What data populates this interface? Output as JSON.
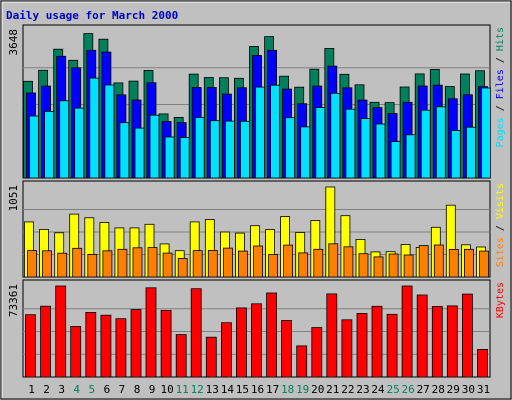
{
  "chart_data": {
    "type": "bar",
    "title": "Daily usage for March 2000",
    "categories": [
      "1",
      "2",
      "3",
      "4",
      "5",
      "6",
      "7",
      "8",
      "9",
      "10",
      "11",
      "12",
      "13",
      "14",
      "15",
      "16",
      "17",
      "18",
      "19",
      "20",
      "21",
      "22",
      "23",
      "24",
      "25",
      "26",
      "27",
      "28",
      "29",
      "30",
      "31"
    ],
    "weekend_days": [
      "4",
      "5",
      "11",
      "12",
      "18",
      "19",
      "25",
      "26"
    ],
    "panels": [
      {
        "id": "hits-files-pages",
        "ymax_label": "3648",
        "ymax": 3648,
        "legend": [
          {
            "name": "Pages",
            "color": "#00e0ff"
          },
          {
            "name": "Files",
            "color": "#0000ff"
          },
          {
            "name": "Hits",
            "color": "#00805c"
          }
        ],
        "series": [
          {
            "name": "Hits",
            "color": "#00805c",
            "values": [
              2400,
              2672,
              3196,
              2922,
              3583,
              3444,
              2361,
              2404,
              2670,
              1590,
              1505,
              2578,
              2495,
              2490,
              2475,
              3266,
              3510,
              2526,
              2253,
              2699,
              3216,
              2573,
              2312,
              1879,
              1871,
              2258,
              2583,
              2696,
              2270,
              2582,
              2664
            ]
          },
          {
            "name": "Files",
            "color": "#0000ff",
            "values": [
              2109,
              2281,
              3020,
              2736,
              3170,
              3124,
              2064,
              1935,
              2365,
              1403,
              1374,
              2247,
              2245,
              2081,
              2240,
              3040,
              3168,
              2206,
              1844,
              2281,
              2778,
              2238,
              1933,
              1746,
              1601,
              1878,
              2283,
              2302,
              1965,
              2067,
              2269
            ]
          },
          {
            "name": "Pages",
            "color": "#00e0ff",
            "values": [
              1539,
              1654,
              1916,
              1735,
              2478,
              2307,
              1372,
              1239,
              1559,
              1018,
              1004,
              1504,
              1421,
              1411,
              1408,
              2256,
              2304,
              1497,
              1269,
              1748,
              2103,
              1707,
              1475,
              1341,
              903,
              1071,
              1682,
              1767,
              1179,
              1261,
              2234
            ]
          }
        ]
      },
      {
        "id": "visits-sites",
        "ymax_label": "1051",
        "ymax": 1051,
        "legend": [
          {
            "name": "Sites",
            "color": "#ff8000"
          },
          {
            "name": "Visits",
            "color": "#ffff00"
          }
        ],
        "series": [
          {
            "name": "Visits",
            "color": "#ffff00",
            "values": [
              644,
              556,
              516,
              734,
              691,
              637,
              573,
              573,
              615,
              387,
              307,
              644,
              671,
              525,
              513,
              599,
              553,
              705,
              520,
              660,
              1051,
              716,
              438,
              293,
              295,
              380,
              346,
              580,
              838,
              376,
              350
            ]
          },
          {
            "name": "Sites",
            "color": "#ff8000",
            "values": [
              308,
              306,
              278,
              335,
              264,
              306,
              324,
              341,
              343,
              279,
              216,
              308,
              310,
              338,
              303,
              362,
              262,
              373,
              282,
              324,
              388,
              353,
              272,
              235,
              269,
              257,
              367,
              374,
              322,
              323,
              303
            ]
          }
        ]
      },
      {
        "id": "kbytes",
        "ymax_label": "73361",
        "ymax": 73361,
        "legend": [
          {
            "name": "KBytes",
            "color": "#ff0000"
          }
        ],
        "series": [
          {
            "name": "KBytes",
            "color": "#ff0000",
            "values": [
              50193,
              57079,
              73361,
              40680,
              52081,
              49817,
              47015,
              54300,
              71870,
              53718,
              34180,
              71215,
              32106,
              43780,
              55669,
              59046,
              67718,
              45587,
              25105,
              39785,
              66963,
              46092,
              51232,
              56976,
              50556,
              73361,
              66113,
              56861,
              57316,
              66810,
              22211
            ]
          }
        ]
      }
    ]
  }
}
